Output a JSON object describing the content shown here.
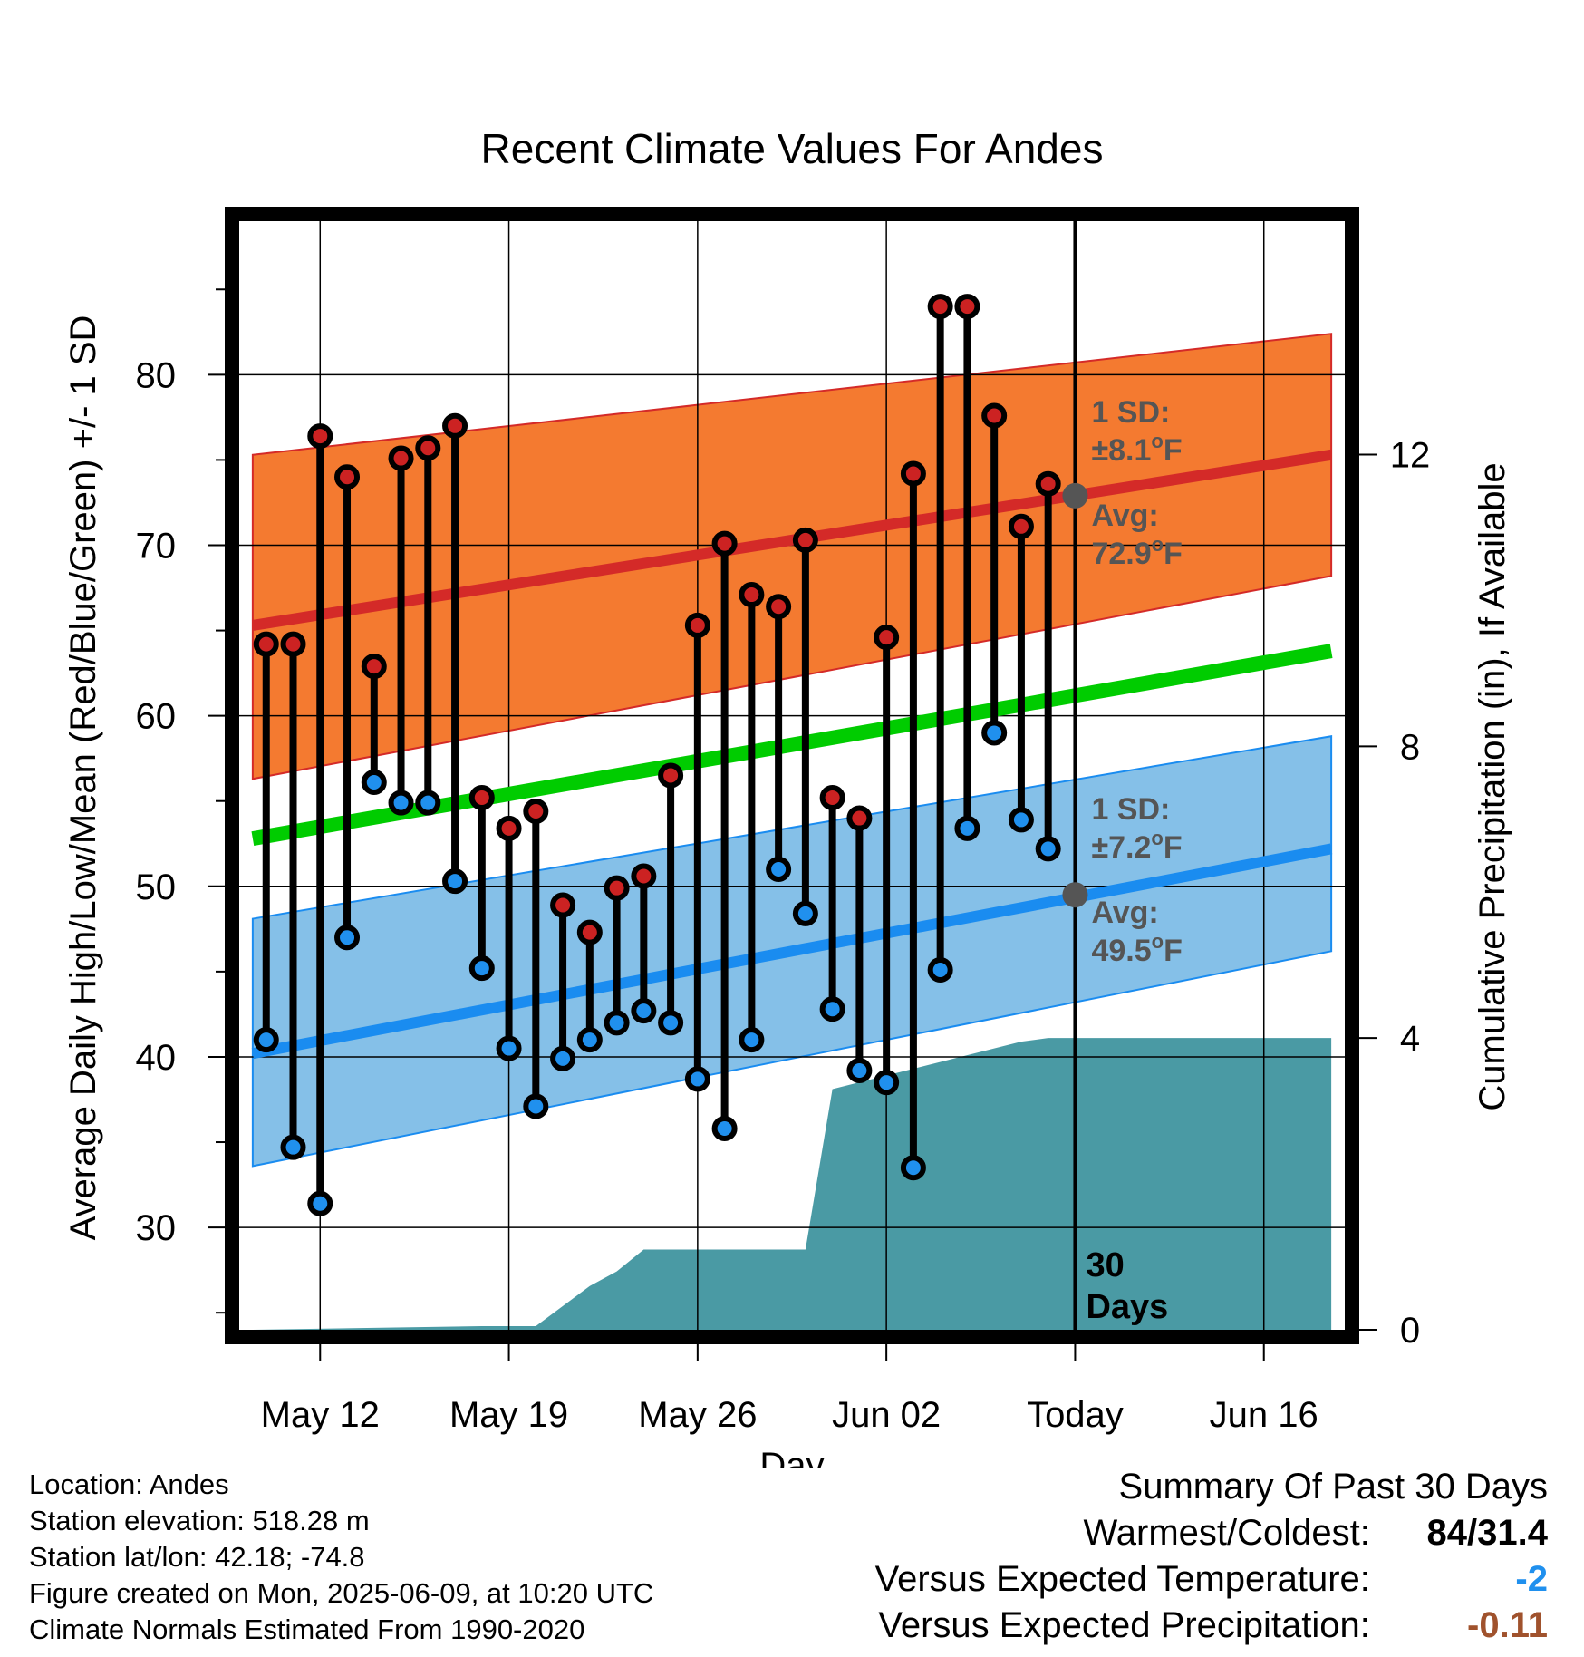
{
  "chart_data": {
    "type": "line",
    "title": "Recent Climate Values For Andes",
    "xlabel": "Day",
    "ylabel_left": "Average Daily High/Low/Mean (Red/Blue/Green) +/- 1 SD",
    "ylabel_right": "Cumulative Precipitation (in), If Available",
    "x_ticks": [
      {
        "label": "May 12",
        "day": 2
      },
      {
        "label": "May 19",
        "day": 9
      },
      {
        "label": "May 26",
        "day": 16
      },
      {
        "label": "Jun 02",
        "day": 23
      },
      {
        "label": "Today",
        "day": 30
      },
      {
        "label": "Jun 16",
        "day": 37
      }
    ],
    "x_range": [
      -1,
      40
    ],
    "y_left_range": [
      24,
      89
    ],
    "y_left_ticks": [
      30,
      40,
      50,
      60,
      70,
      80
    ],
    "y_right_range": [
      0,
      15.2
    ],
    "y_right_ticks": [
      0,
      4,
      8,
      12
    ],
    "grid": true,
    "normals": {
      "x": [
        -0.5,
        39.5
      ],
      "high_mean": [
        65.3,
        75.3
      ],
      "high_sd_upper": [
        75.3,
        82.4
      ],
      "high_sd_lower": [
        56.3,
        68.2
      ],
      "mean_mean": [
        52.8,
        63.8
      ],
      "low_mean": [
        40.2,
        52.2
      ],
      "low_sd_upper": [
        48.1,
        58.8
      ],
      "low_sd_lower": [
        33.6,
        46.2
      ]
    },
    "series": [
      {
        "name": "High",
        "color": "#cc2222",
        "days": [
          0,
          1,
          2,
          3,
          4,
          5,
          6,
          7,
          8,
          9,
          10,
          11,
          12,
          13,
          14,
          15,
          16,
          17,
          18,
          19,
          20,
          21,
          22,
          23,
          24,
          25,
          26,
          27,
          28,
          29
        ],
        "values": [
          64.2,
          64.2,
          76.4,
          74.0,
          62.9,
          75.1,
          75.7,
          77.0,
          55.2,
          53.4,
          54.4,
          48.9,
          47.3,
          49.9,
          50.6,
          56.5,
          65.3,
          70.1,
          67.1,
          66.4,
          70.3,
          55.2,
          54.0,
          64.6,
          74.2,
          84.0,
          84.0,
          77.6,
          71.1,
          73.6
        ]
      },
      {
        "name": "Low",
        "color": "#2090ee",
        "days": [
          0,
          1,
          2,
          3,
          4,
          5,
          6,
          7,
          8,
          9,
          10,
          11,
          12,
          13,
          14,
          15,
          16,
          17,
          18,
          19,
          20,
          21,
          22,
          23,
          24,
          25,
          26,
          27,
          28,
          29
        ],
        "values": [
          41.0,
          34.7,
          31.4,
          47.0,
          56.1,
          54.9,
          54.9,
          50.3,
          45.2,
          40.5,
          37.1,
          39.9,
          41.0,
          42.0,
          42.7,
          42.0,
          38.7,
          35.8,
          41.0,
          51.0,
          48.4,
          42.8,
          39.2,
          38.5,
          33.5,
          45.1,
          53.4,
          59.0,
          53.9,
          52.2
        ]
      }
    ],
    "precip": {
      "name": "Cumulative Precipitation",
      "color": "#4a9aa4",
      "days": [
        -0.5,
        8,
        10,
        12,
        13,
        14,
        20,
        21,
        28,
        29,
        39.5
      ],
      "values": [
        0,
        0.05,
        0.05,
        0.6,
        0.8,
        1.1,
        1.1,
        3.3,
        3.95,
        4.0,
        4.0
      ]
    },
    "annotations": {
      "high_sd_title": "1 SD:",
      "high_sd_value": "±8.1",
      "high_avg_title": "Avg:",
      "high_avg_value": "72.9",
      "high_avg_marker": 72.9,
      "low_sd_title": "1 SD:",
      "low_sd_value": "±7.2",
      "low_avg_title": "Avg:",
      "low_avg_value": "49.5",
      "low_avg_marker": 49.5,
      "degree_unit": "o",
      "f_unit": "F",
      "days_line1": "30",
      "days_line2": "Days",
      "today_day": 30
    },
    "colors": {
      "high_band": "#f47a30",
      "high_line": "#d42a28",
      "mean_line": "#00cc00",
      "low_band": "#85c0e8",
      "low_line": "#1a8cf0",
      "precip": "#4a9aa4",
      "marker_avg": "#555555"
    }
  },
  "footer": {
    "location": "Location: Andes",
    "elevation": "Station elevation: 518.28 m",
    "latlon": "Station lat/lon: 42.18; -74.8",
    "created": "Figure created on Mon, 2025-06-09, at 10:20 UTC",
    "normals": "Climate Normals Estimated From 1990-2020"
  },
  "summary": {
    "title": "Summary Of Past 30 Days",
    "warm_cold_label": "Warmest/Coldest:",
    "warm_cold_value": "84/31.4",
    "temp_label": "Versus Expected Temperature:",
    "temp_value": "-2",
    "temp_color": "#2090ee",
    "precip_label": "Versus Expected Precipitation:",
    "precip_value": "-0.11",
    "precip_color": "#a0522d"
  }
}
